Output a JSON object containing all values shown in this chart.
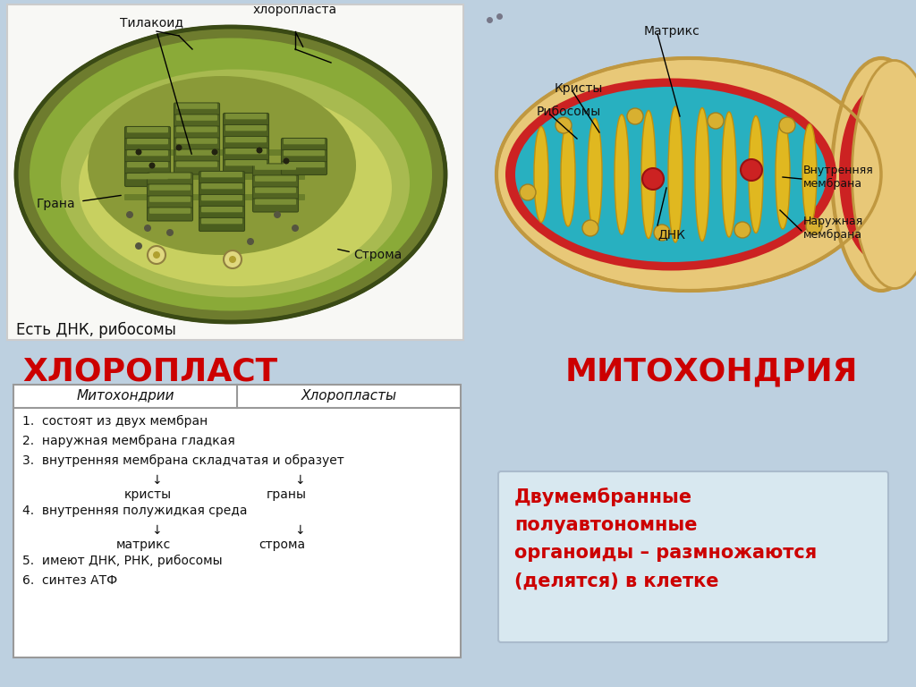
{
  "background_color": "#bdd0e0",
  "title_chloroplast": "ХЛОРОПЛАСТ",
  "title_mitochondria": "МИТОХОНДРИЯ",
  "title_color": "#cc0000",
  "title_fontsize": 26,
  "chloroplast_caption": "Есть ДНК, рибосомы",
  "table_header_col1": "Митохондрии",
  "table_header_col2": "Хлоропласты",
  "info_box_text": "Двумембранные\nполуавтономные\nорганоиды – размножаются\n(делятся) в клетке",
  "info_box_color": "#d8e8f0",
  "info_box_text_color": "#cc0000",
  "table_bg": "#ffffff",
  "table_border": "#999999",
  "table_text_color": "#111111"
}
